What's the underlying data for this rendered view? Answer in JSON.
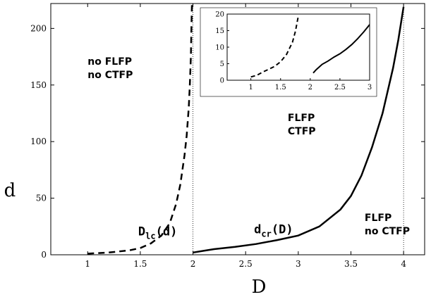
{
  "chart_data": {
    "type": "line",
    "xlabel": "D",
    "ylabel": "d",
    "xlim": [
      0.65,
      4.2
    ],
    "ylim": [
      0,
      222
    ],
    "x_ticks": [
      1,
      1.5,
      2,
      2.5,
      3,
      3.5,
      4
    ],
    "x_tick_labels": [
      "1",
      "1.5",
      "2",
      "2.5",
      "3",
      "3.5",
      "4"
    ],
    "y_ticks": [
      0,
      50,
      100,
      150,
      200
    ],
    "y_tick_labels": [
      "0",
      "50",
      "100",
      "150",
      "200"
    ],
    "grid": false,
    "vertical_reference_lines": [
      2,
      4
    ],
    "series": [
      {
        "label": "D_lc(d)",
        "style": "dashed",
        "x": [
          1.0,
          1.2,
          1.4,
          1.5,
          1.6,
          1.7,
          1.78,
          1.84,
          1.88,
          1.92,
          1.94,
          1.96,
          1.97,
          1.98,
          1.985,
          1.99
        ],
        "y": [
          1,
          2,
          4,
          6,
          10,
          17,
          28,
          45,
          62,
          88,
          105,
          130,
          150,
          175,
          198,
          222
        ]
      },
      {
        "label": "d_cr(D)",
        "style": "solid",
        "x": [
          2.0,
          2.1,
          2.2,
          2.4,
          2.6,
          2.8,
          3.0,
          3.2,
          3.4,
          3.5,
          3.6,
          3.7,
          3.8,
          3.9,
          3.95,
          4.0
        ],
        "y": [
          2,
          3.5,
          5,
          7,
          9.5,
          13,
          17,
          25,
          40,
          52,
          70,
          95,
          125,
          165,
          190,
          219
        ]
      }
    ],
    "curve_labels": [
      {
        "main": "D",
        "sub": "lc",
        "rest": "(d)",
        "x": 1.48,
        "y": 17
      },
      {
        "main": "d",
        "sub": "cr",
        "rest": "(D)",
        "x": 2.58,
        "y": 19
      }
    ],
    "region_labels": [
      {
        "lines": [
          "no FLFP",
          "no CTFP"
        ],
        "x": 1.0,
        "y": 168
      },
      {
        "lines": [
          "FLFP",
          "CTFP"
        ],
        "x": 2.9,
        "y": 118
      },
      {
        "lines": [
          "FLFP",
          "no CTFP"
        ],
        "x": 3.63,
        "y": 30
      }
    ],
    "inset": {
      "type": "line",
      "xlim": [
        0.6,
        3.0
      ],
      "ylim": [
        0,
        20
      ],
      "x_ticks": [
        1,
        1.5,
        2,
        2.5,
        3
      ],
      "x_tick_labels": [
        "1",
        "1.5",
        "2",
        "2.5",
        "3"
      ],
      "y_ticks": [
        0,
        5,
        10,
        15,
        20
      ],
      "y_tick_labels": [
        "0",
        "5",
        "10",
        "15",
        "20"
      ],
      "series": [
        {
          "style": "dashed",
          "x": [
            1.0,
            1.1,
            1.2,
            1.3,
            1.4,
            1.5,
            1.6,
            1.7,
            1.75,
            1.8
          ],
          "y": [
            1,
            1.5,
            2.5,
            3.3,
            4.2,
            5.6,
            7.8,
            11.5,
            14.8,
            19.5
          ]
        },
        {
          "style": "solid",
          "x": [
            2.05,
            2.1,
            2.2,
            2.3,
            2.4,
            2.5,
            2.6,
            2.7,
            2.8,
            2.9,
            3.0
          ],
          "y": [
            2.2,
            3.2,
            4.8,
            5.8,
            7.0,
            8.0,
            9.3,
            10.8,
            12.6,
            14.6,
            16.8
          ]
        }
      ]
    }
  }
}
